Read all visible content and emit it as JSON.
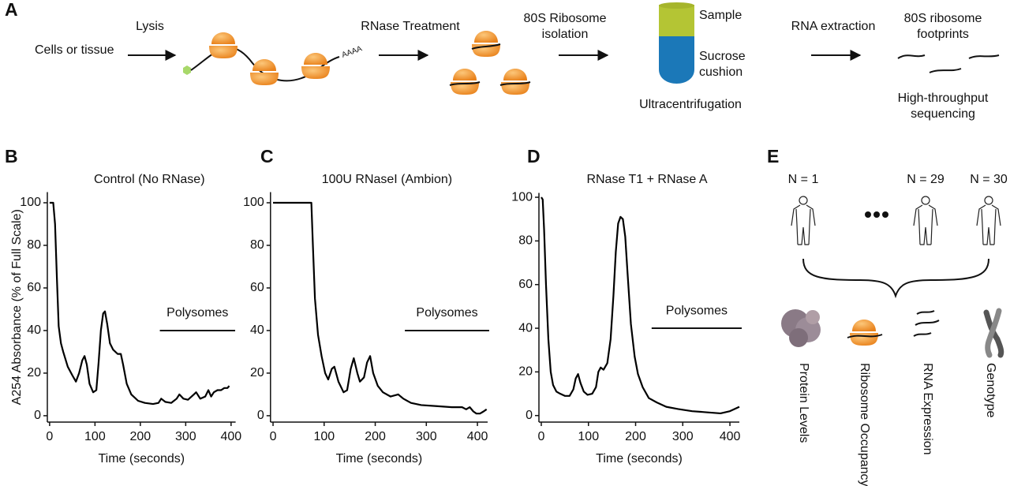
{
  "panel_a": {
    "label": "A",
    "start": "Cells or tissue",
    "poly_a": "AAAA",
    "steps": [
      [
        "Lysis"
      ],
      [
        "RNase Treatment"
      ],
      [
        "80S Ribosome",
        "isolation"
      ],
      [
        "RNA extraction"
      ]
    ],
    "tube_labels": [
      [
        "Sample"
      ],
      [
        "Sucrose",
        "cushion"
      ]
    ],
    "tube_caption": "Ultracentrifugation",
    "result": [
      "80S ribosome",
      "footprints"
    ],
    "final": [
      "High-throughput",
      "sequencing"
    ]
  },
  "chart_data": [
    {
      "type": "line",
      "panel": "B",
      "title": "Control (No RNase)",
      "x_label": "Time (seconds)",
      "y_label": "A254 Absorbance (% of Full Scale)",
      "color": "#000000",
      "xlim": [
        -5,
        410
      ],
      "ylim": [
        -3,
        105
      ],
      "xticks": [
        0,
        100,
        200,
        300,
        400
      ],
      "yticks": [
        0,
        20,
        40,
        60,
        80,
        100
      ],
      "x": [
        0,
        8,
        12,
        16,
        20,
        25,
        30,
        40,
        50,
        58,
        65,
        72,
        77,
        82,
        88,
        96,
        103,
        108,
        113,
        118,
        122,
        127,
        133,
        140,
        150,
        157,
        162,
        170,
        180,
        195,
        210,
        228,
        240,
        246,
        255,
        268,
        280,
        286,
        295,
        305,
        318,
        323,
        332,
        343,
        350,
        356,
        362,
        370,
        378,
        385,
        392,
        396
      ],
      "values": [
        100,
        100,
        90,
        65,
        42,
        34,
        30,
        23,
        19,
        16,
        20,
        26,
        28,
        24,
        15,
        11,
        12,
        25,
        40,
        48,
        49,
        43,
        34,
        31,
        29,
        29,
        24,
        15,
        10,
        7,
        6,
        5.5,
        6,
        8,
        6.5,
        6,
        8,
        10,
        8,
        7.5,
        10,
        11,
        8,
        9,
        12,
        9,
        11,
        12,
        12,
        13,
        13,
        14
      ],
      "annotation": {
        "text": "Polysomes",
        "x": [
          243,
          409
        ],
        "y": 40
      }
    },
    {
      "type": "line",
      "panel": "C",
      "title": "100U RNaseI (Ambion)",
      "x_label": "Time (seconds)",
      "color": "#000000",
      "xlim": [
        -5,
        420
      ],
      "ylim": [
        -3,
        105
      ],
      "xticks": [
        0,
        100,
        200,
        300,
        400
      ],
      "yticks": [
        0,
        20,
        40,
        60,
        80,
        100
      ],
      "x": [
        0,
        40,
        75,
        78,
        82,
        88,
        95,
        102,
        108,
        115,
        120,
        128,
        138,
        145,
        152,
        158,
        165,
        170,
        178,
        184,
        190,
        196,
        205,
        215,
        230,
        245,
        255,
        270,
        290,
        320,
        350,
        370,
        378,
        385,
        392,
        398,
        405,
        412,
        418
      ],
      "values": [
        100,
        100,
        100,
        80,
        55,
        38,
        28,
        20,
        17,
        22,
        23,
        16,
        11,
        12,
        22,
        27,
        20,
        16,
        18,
        25,
        28,
        20,
        14,
        11,
        9,
        10,
        8,
        6,
        5,
        4.5,
        4,
        4,
        3,
        4,
        2,
        1,
        1,
        2,
        3
      ],
      "annotation": {
        "text": "Polysomes",
        "x": [
          258,
          423
        ],
        "y": 40
      }
    },
    {
      "type": "line",
      "panel": "D",
      "title": "RNase T1 + RNase A",
      "x_label": "Time (seconds)",
      "color": "#000000",
      "xlim": [
        -5,
        420
      ],
      "ylim": [
        -3,
        102
      ],
      "xticks": [
        0,
        100,
        200,
        300,
        400
      ],
      "yticks": [
        0,
        20,
        40,
        60,
        80,
        100
      ],
      "x": [
        0,
        3,
        6,
        10,
        15,
        20,
        25,
        32,
        40,
        50,
        60,
        68,
        73,
        78,
        83,
        90,
        98,
        108,
        116,
        121,
        126,
        132,
        140,
        147,
        153,
        158,
        163,
        168,
        173,
        178,
        183,
        190,
        198,
        205,
        215,
        228,
        245,
        265,
        290,
        320,
        350,
        380,
        400,
        410,
        420
      ],
      "values": [
        100,
        99,
        85,
        60,
        35,
        20,
        14,
        11,
        10,
        9,
        9,
        12,
        17,
        19,
        15,
        11,
        9.5,
        10,
        13,
        20,
        22,
        21,
        24,
        35,
        55,
        75,
        88,
        91,
        90,
        82,
        65,
        42,
        27,
        19,
        13,
        8,
        6,
        4,
        3,
        2,
        1.5,
        1,
        2,
        3,
        4
      ],
      "annotation": {
        "text": "Polysomes",
        "x": [
          234,
          425
        ],
        "y": 40
      }
    }
  ],
  "panel_e": {
    "label": "E",
    "counts": [
      "N = 1",
      "N = 29",
      "N = 30"
    ],
    "data_types": [
      "Protein Levels",
      "Ribosome Occupancy",
      "RNA Expression",
      "Genotype"
    ]
  }
}
